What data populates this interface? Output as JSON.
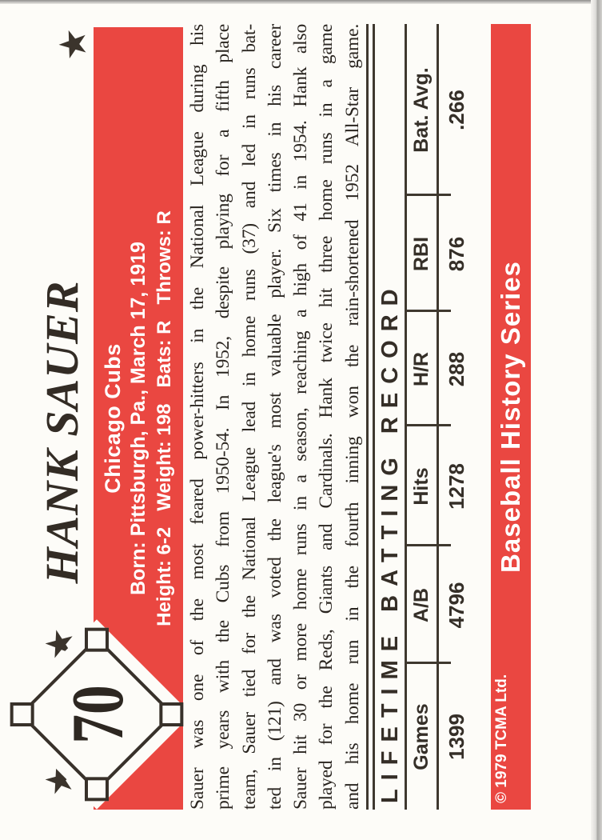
{
  "card": {
    "number": "70",
    "title": "HANK SAUER",
    "info_box": {
      "team": "Chicago Cubs",
      "born_line": "Born: Pittsburgh, Pa., March 17, 1919",
      "stats_line": "Height: 6-2   Weight: 198   Bats: R   Throws: R"
    },
    "bio_lines": [
      "Sauer was one of the most feared power-hitters in the National League during his",
      "prime years with the Cubs from 1950-54. In 1952, despite playing for a fifth place",
      "team, Sauer tied for the National League lead in home runs (37) and led in runs bat-",
      "ted in (121) and was voted the league's most valuable player. Six times in his career",
      "Sauer hit 30 or more home runs in a season, reaching a high of 41 in 1954. Hank also",
      "played for the Reds, Giants and Cardinals. Hank twice hit three home runs in a game",
      "and his home run in the fourth inning won the rain-shortened 1952 All-Star game."
    ],
    "table": {
      "title": "LIFETIME BATTING RECORD",
      "columns": [
        {
          "label": "Games",
          "value": "1399"
        },
        {
          "label": "A/B",
          "value": "4796"
        },
        {
          "label": "Hits",
          "value": "1278"
        },
        {
          "label": "H/R",
          "value": "288"
        },
        {
          "label": "RBI",
          "value": "876"
        },
        {
          "label": "Bat. Avg.",
          "value": ".266"
        }
      ]
    },
    "footer": {
      "series": "Baseball History Series",
      "copyright": "© 1979 TCMA Ltd."
    },
    "icons": {
      "star": "★"
    },
    "colors": {
      "accent_red": "#ea4741",
      "ink": "#38312a"
    }
  }
}
